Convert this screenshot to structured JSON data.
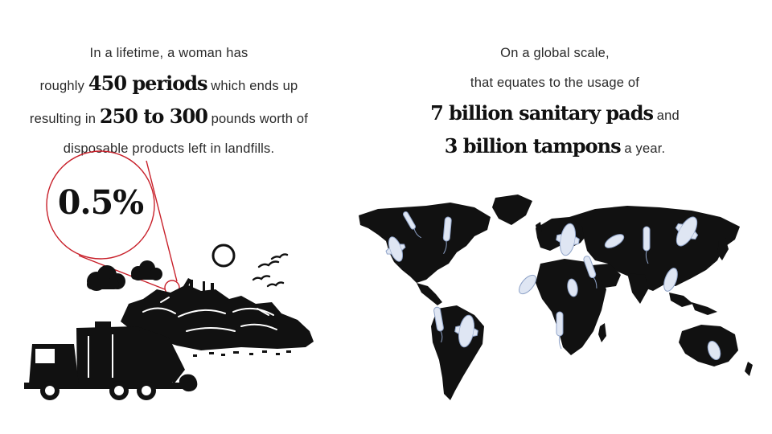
{
  "left": {
    "line1": "In a lifetime, a woman has",
    "line2_pre": "roughly ",
    "line2_big": "450 periods",
    "line2_post": " which ends up",
    "line3_pre": "resulting in ",
    "line3_big": "250 to 300",
    "line3_post": " pounds worth of",
    "line4": "disposable products left in landfills."
  },
  "zoom": {
    "value": "0.5%"
  },
  "right": {
    "line1": "On a global scale,",
    "line2": "that equates to the usage of",
    "line3_big": "7 billion sanitary pads",
    "line3_post": " and",
    "line4_big": "3 billion tampons",
    "line4_post": " a year."
  },
  "icons": {
    "landfill": "landfill-illustration",
    "truck": "garbage-truck-icon",
    "map": "world-map-illustration",
    "pad": "sanitary-pad-icon",
    "tampon": "tampon-icon"
  },
  "colors": {
    "accent": "#c8202a",
    "ink": "#111111",
    "pad_fill": "#dfe6f3"
  }
}
